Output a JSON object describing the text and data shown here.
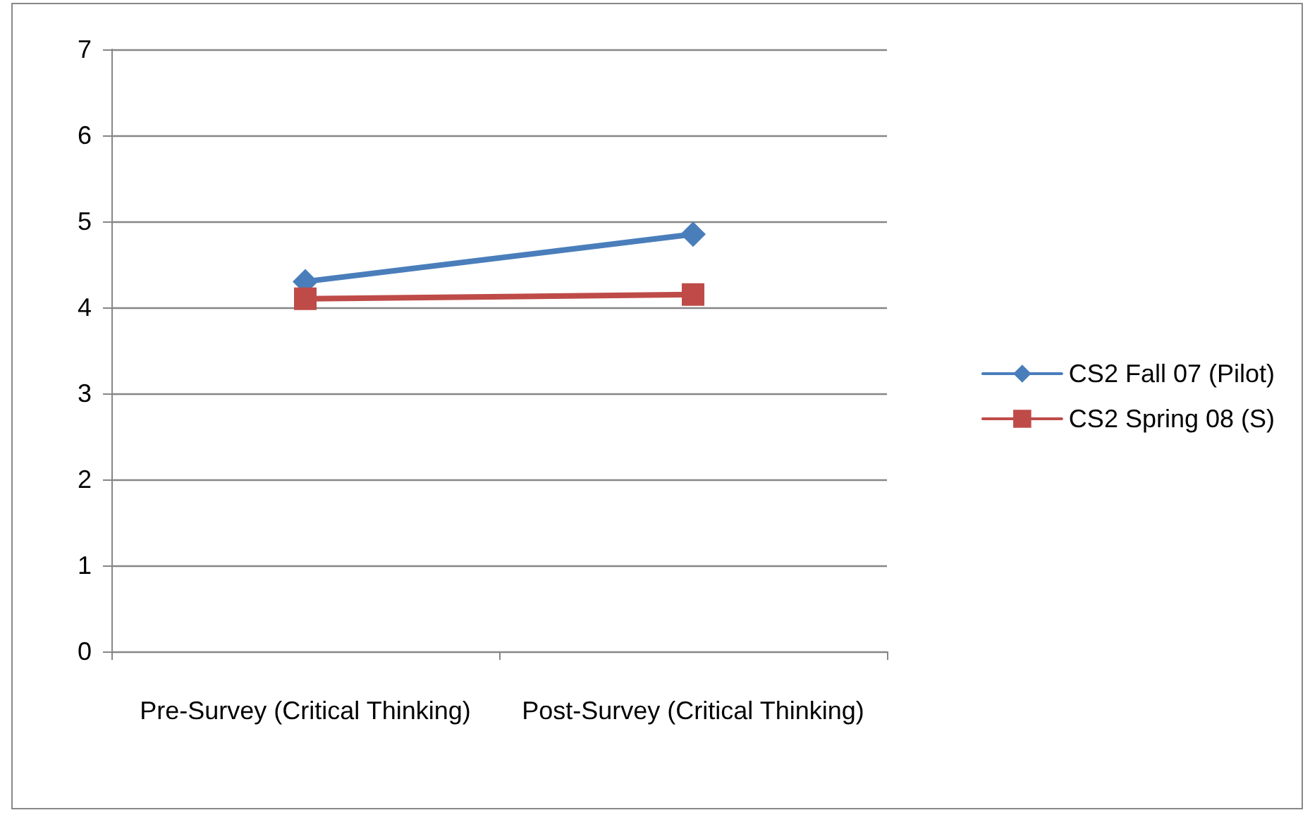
{
  "chart_data": {
    "type": "line",
    "categories": [
      "Pre-Survey (Critical Thinking)",
      "Post-Survey (Critical Thinking)"
    ],
    "series": [
      {
        "name": "CS2 Fall 07 (Pilot)",
        "color": "#4a7ebb",
        "marker": "diamond",
        "values": [
          4.3,
          4.85
        ]
      },
      {
        "name": "CS2 Spring 08 (S)",
        "color": "#be4b48",
        "marker": "square",
        "values": [
          4.1,
          4.15
        ]
      }
    ],
    "ylim": [
      0,
      7
    ],
    "yticks": [
      0,
      1,
      2,
      3,
      4,
      5,
      6,
      7
    ],
    "grid": "y",
    "legend": "right"
  }
}
